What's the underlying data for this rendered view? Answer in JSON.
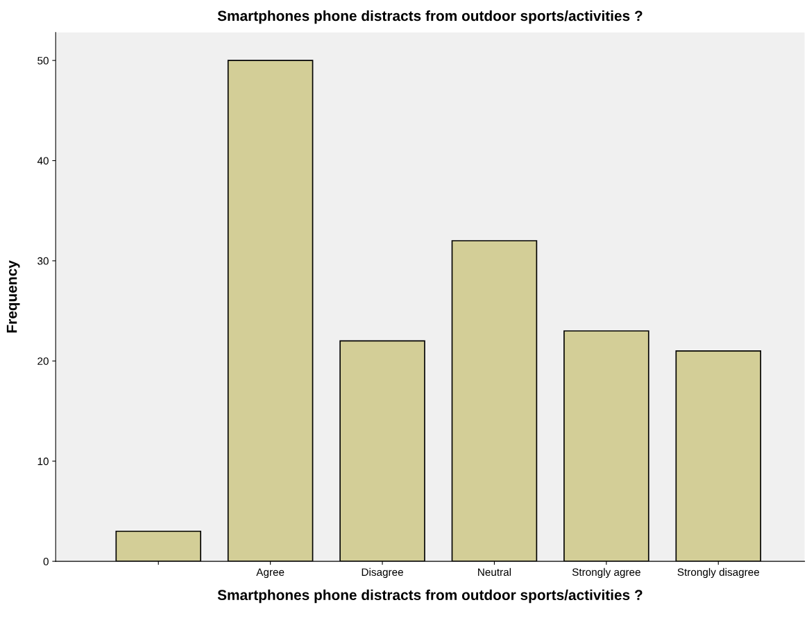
{
  "chart_data": {
    "type": "bar",
    "title": "Smartphones phone distracts from outdoor sports/activities ?",
    "xlabel": "Smartphones phone distracts from outdoor sports/activities ?",
    "ylabel": "Frequency",
    "categories": [
      null,
      "Agree",
      "Disagree",
      "Neutral",
      "Strongly agree",
      "Strongly disagree"
    ],
    "values": [
      3,
      50,
      22,
      32,
      23,
      21
    ],
    "color": "#d3ce97",
    "ylim": [
      0,
      52.8
    ],
    "yticks": [
      0,
      10,
      20,
      30,
      40,
      50
    ],
    "grid": false
  }
}
